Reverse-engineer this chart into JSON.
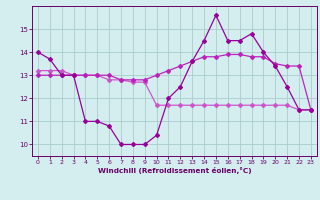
{
  "hours": [
    0,
    1,
    2,
    3,
    4,
    5,
    6,
    7,
    8,
    9,
    10,
    11,
    12,
    13,
    14,
    15,
    16,
    17,
    18,
    19,
    20,
    21,
    22,
    23
  ],
  "line1": [
    14.0,
    13.7,
    13.0,
    13.0,
    11.0,
    11.0,
    10.8,
    10.0,
    10.0,
    10.0,
    10.4,
    12.0,
    12.5,
    13.6,
    14.5,
    15.6,
    14.5,
    14.5,
    14.8,
    14.0,
    13.4,
    12.5,
    11.5,
    11.5
  ],
  "line2": [
    13.0,
    13.0,
    13.0,
    13.0,
    13.0,
    13.0,
    13.0,
    12.8,
    12.8,
    12.8,
    13.0,
    13.2,
    13.4,
    13.6,
    13.8,
    13.8,
    13.9,
    13.9,
    13.8,
    13.8,
    13.5,
    13.4,
    13.4,
    11.5
  ],
  "line3": [
    13.2,
    13.2,
    13.2,
    13.0,
    13.0,
    13.0,
    12.8,
    12.8,
    12.7,
    12.7,
    11.7,
    11.7,
    11.7,
    11.7,
    11.7,
    11.7,
    11.7,
    11.7,
    11.7,
    11.7,
    11.7,
    11.7,
    11.5,
    11.5
  ],
  "line_color1": "#990099",
  "line_color2": "#bb22bb",
  "line_color3": "#cc55cc",
  "bg_color": "#d4eef0",
  "grid_color": "#aacccc",
  "axis_color": "#660066",
  "text_color": "#660066",
  "xlabel": "Windchill (Refroidissement éolien,°C)",
  "ylim": [
    9.5,
    16.0
  ],
  "xlim": [
    -0.5,
    23.5
  ],
  "yticks": [
    10,
    11,
    12,
    13,
    14,
    15
  ],
  "xticks": [
    0,
    1,
    2,
    3,
    4,
    5,
    6,
    7,
    8,
    9,
    10,
    11,
    12,
    13,
    14,
    15,
    16,
    17,
    18,
    19,
    20,
    21,
    22,
    23
  ],
  "figsize": [
    3.2,
    2.0
  ],
  "dpi": 100
}
